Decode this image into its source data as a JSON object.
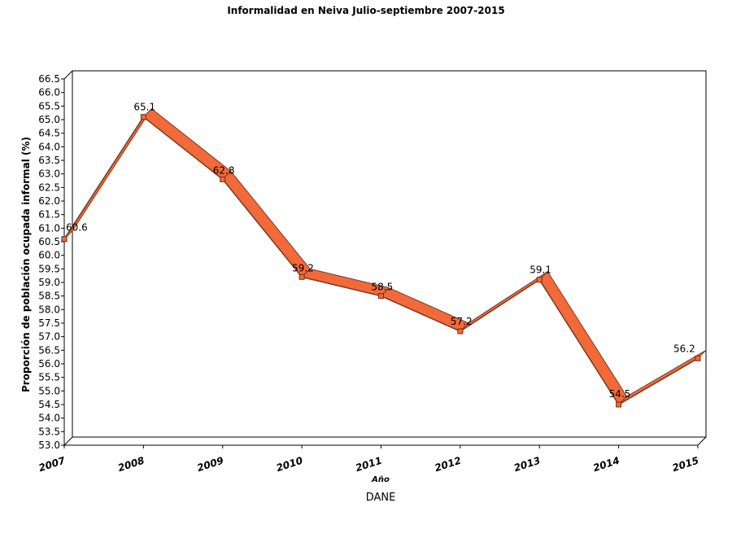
{
  "chart_data": {
    "type": "line",
    "title": "Informalidad en Neiva Julio-septiembre 2007-2015",
    "xlabel": "Año",
    "ylabel": "Proporción de población ocupada informal (%)",
    "source": "DANE",
    "categories": [
      "2007",
      "2008",
      "2009",
      "2010",
      "2011",
      "2012",
      "2013",
      "2014",
      "2015"
    ],
    "values": [
      60.6,
      65.1,
      62.8,
      59.2,
      58.5,
      57.2,
      59.1,
      54.5,
      56.2
    ],
    "data_labels": [
      "60.6",
      "65.1",
      "62.8",
      "59.2",
      "58.5",
      "57.2",
      "59.1",
      "54.5",
      "56.2"
    ],
    "ylim": [
      53.0,
      66.5
    ],
    "yticks": [
      "53.0",
      "53.5",
      "54.0",
      "54.5",
      "55.0",
      "55.5",
      "56.0",
      "56.5",
      "57.0",
      "57.5",
      "58.0",
      "58.5",
      "59.0",
      "59.5",
      "60.0",
      "60.5",
      "61.0",
      "61.5",
      "62.0",
      "62.5",
      "63.0",
      "63.5",
      "64.0",
      "64.5",
      "65.0",
      "65.5",
      "66.0",
      "66.5"
    ],
    "grid": false,
    "legend": "none",
    "colors": {
      "ribbon": "#f26a3a",
      "edge": "#7a3a22",
      "marker": "#f26a3a"
    }
  }
}
